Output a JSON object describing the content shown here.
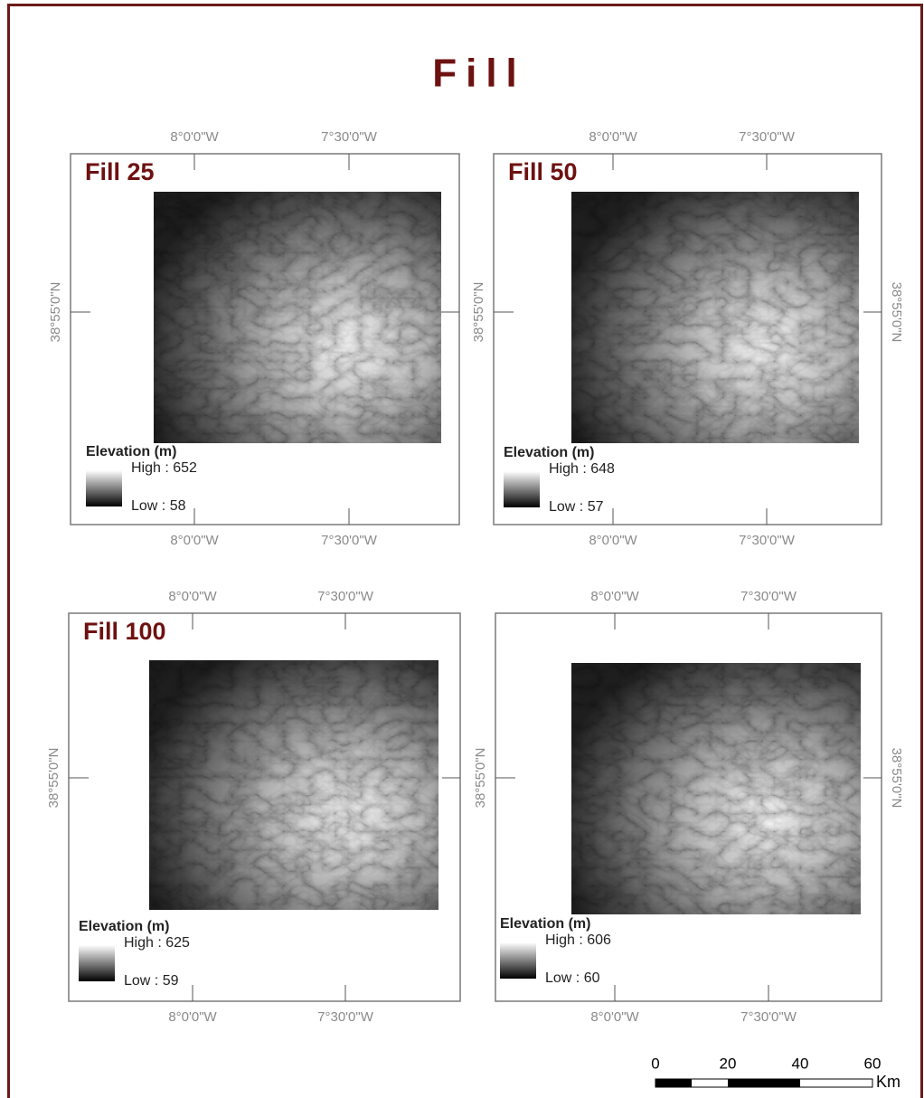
{
  "title": "Fill",
  "panels": [
    {
      "title": "Fill 25",
      "top_labels": [
        "8°0'0\"W",
        "7°30'0\"W"
      ],
      "bottom_labels": [
        "8°0'0\"W",
        "7°30'0\"W"
      ],
      "lat_labels": {
        "left": "38°55'0\"N"
      },
      "legend": {
        "title": "Elevation (m)",
        "high": "High : 652",
        "low": "Low : 58"
      }
    },
    {
      "title": "Fill 50",
      "top_labels": [
        "8°0'0\"W",
        "7°30'0\"W"
      ],
      "bottom_labels": [
        "8°0'0\"W",
        "7°30'0\"W"
      ],
      "lat_labels": {
        "left": "38°55'0\"N",
        "right": "38°55'0\"N"
      },
      "legend": {
        "title": "Elevation (m)",
        "high": "High : 648",
        "low": "Low : 57"
      }
    },
    {
      "title": "Fill 100",
      "top_labels": [
        "8°0'0\"W",
        "7°30'0\"W"
      ],
      "bottom_labels": [
        "8°0'0\"W",
        "7°30'0\"W"
      ],
      "lat_labels": {
        "left": "38°55'0\"N"
      },
      "legend": {
        "title": "Elevation (m)",
        "high": "High : 625",
        "low": "Low : 59"
      }
    },
    {
      "top_labels": [
        "8°0'0\"W",
        "7°30'0\"W"
      ],
      "bottom_labels": [
        "8°0'0\"W",
        "7°30'0\"W"
      ],
      "lat_labels": {
        "left": "38°55'0\"N",
        "right": "38°55'0\"N"
      },
      "legend": {
        "title": "Elevation (m)",
        "high": "High : 606",
        "low": "Low : 60"
      }
    }
  ],
  "scale_bar": {
    "ticks": [
      0,
      20,
      40,
      60
    ],
    "unit": "Km"
  }
}
